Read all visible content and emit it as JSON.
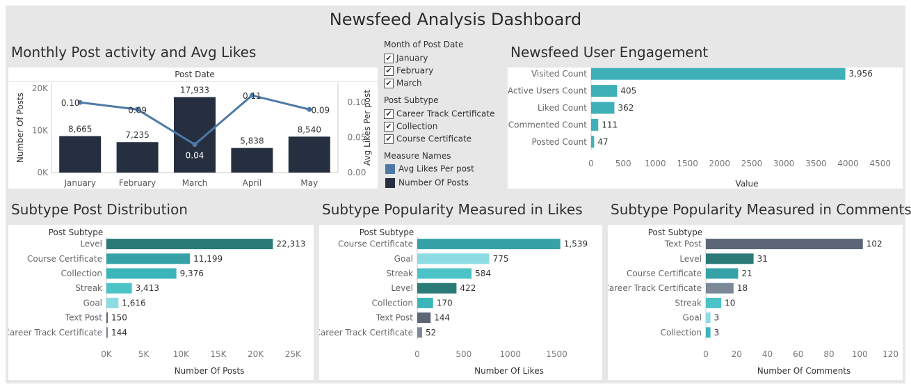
{
  "dashboard": {
    "title": "Newsfeed Analysis Dashboard",
    "monthly_title": "Monthly Post activity and Avg Likes",
    "engagement_title": "Newsfeed User Engagement",
    "subtype_dist_title": "Subtype Post Distribution",
    "likes_title": "Subtype Popularity Measured in Likes",
    "comments_title": "Subtype Popularity Measured in Comments"
  },
  "filters": {
    "month_title": "Month of Post Date",
    "months": [
      "January",
      "February",
      "March"
    ],
    "subtype_title": "Post Subtype",
    "subtypes": [
      "Career Track Certificate",
      "Collection",
      "Course Certificate"
    ],
    "check_glyph": "✔",
    "measure_title": "Measure Names",
    "measures": [
      {
        "label": "Avg Likes Per post",
        "color": "#4e79a7"
      },
      {
        "label": "Number Of Posts",
        "color": "#262f40"
      }
    ]
  },
  "chart_data": [
    {
      "id": "monthly",
      "type": "bar",
      "title": "Post Date",
      "categories": [
        "January",
        "February",
        "March",
        "April",
        "May"
      ],
      "series": [
        {
          "name": "Number Of Posts",
          "values": [
            8665,
            7235,
            17933,
            5838,
            8540
          ],
          "labels": [
            "8,665",
            "7,235",
            "17,933",
            "5,838",
            "8,540"
          ],
          "color": "#262f40"
        },
        {
          "name": "Avg Likes Per post",
          "type": "line",
          "values": [
            0.1,
            0.09,
            0.04,
            0.11,
            0.09
          ],
          "labels": [
            "0.10",
            "0.09",
            "0.04",
            "0.11",
            "0.09"
          ],
          "color": "#4e79a7"
        }
      ],
      "ylabel": "Number Of Posts",
      "y2label": "Avg Likes Per post",
      "ylim": [
        0,
        20000
      ],
      "yticks": [
        {
          "v": 0,
          "l": "0K"
        },
        {
          "v": 10000,
          "l": "10K"
        },
        {
          "v": 20000,
          "l": "20K"
        }
      ],
      "y2lim": [
        0,
        0.12
      ],
      "y2ticks": [
        {
          "v": 0,
          "l": "0.00"
        },
        {
          "v": 0.05,
          "l": "0.05"
        },
        {
          "v": 0.1,
          "l": "0.10"
        }
      ]
    },
    {
      "id": "engagement",
      "type": "bar",
      "orientation": "horizontal",
      "categories": [
        "Visited Count",
        "Active Users Count",
        "Liked Count",
        "Commented Count",
        "Posted Count"
      ],
      "values": [
        3956,
        405,
        362,
        111,
        47
      ],
      "labels": [
        "3,956",
        "405",
        "362",
        "111",
        "47"
      ],
      "color": "#40b0b8",
      "xlabel": "Value",
      "xlim": [
        0,
        4600
      ],
      "xticks": [
        {
          "v": 0,
          "l": "0"
        },
        {
          "v": 500,
          "l": "500"
        },
        {
          "v": 1000,
          "l": "1000"
        },
        {
          "v": 1500,
          "l": "1500"
        },
        {
          "v": 2000,
          "l": "2000"
        },
        {
          "v": 2500,
          "l": "2500"
        },
        {
          "v": 3000,
          "l": "3000"
        },
        {
          "v": 3500,
          "l": "3500"
        },
        {
          "v": 4000,
          "l": "4000"
        },
        {
          "v": 4500,
          "l": "4500"
        }
      ]
    },
    {
      "id": "subtype_dist",
      "type": "bar",
      "orientation": "horizontal",
      "header": "Post Subtype",
      "categories": [
        "Level",
        "Course Certificate",
        "Collection",
        "Streak",
        "Goal",
        "Text Post",
        "Career Track Certificate"
      ],
      "values": [
        22313,
        11199,
        9376,
        3413,
        1616,
        150,
        144
      ],
      "labels": [
        "22,313",
        "11,199",
        "9,376",
        "3,413",
        "1,616",
        "150",
        "144"
      ],
      "colors": [
        "#2a7a78",
        "#36a2a8",
        "#3ab5ba",
        "#4cc3c7",
        "#8ddbe3",
        "#5c6677",
        "#7c8898"
      ],
      "xlabel": "Number Of Posts",
      "xlim": [
        0,
        26000
      ],
      "xticks": [
        {
          "v": 0,
          "l": "0K"
        },
        {
          "v": 5000,
          "l": "5K"
        },
        {
          "v": 10000,
          "l": "10K"
        },
        {
          "v": 15000,
          "l": "15K"
        },
        {
          "v": 20000,
          "l": "20K"
        },
        {
          "v": 25000,
          "l": "25K"
        }
      ]
    },
    {
      "id": "likes",
      "type": "bar",
      "orientation": "horizontal",
      "header": "Post Subtype",
      "categories": [
        "Course Certificate",
        "Goal",
        "Streak",
        "Level",
        "Collection",
        "Text Post",
        "Career Track Certificate"
      ],
      "values": [
        1539,
        775,
        584,
        422,
        170,
        144,
        52
      ],
      "labels": [
        "1,539",
        "775",
        "584",
        "422",
        "170",
        "144",
        "52"
      ],
      "colors": [
        "#36a2a8",
        "#8ddbe3",
        "#4cc3c7",
        "#2a7a78",
        "#3ab5ba",
        "#5c6677",
        "#7c8898"
      ],
      "xlabel": "Number Of Likes",
      "xlim": [
        0,
        1780
      ],
      "xticks": [
        {
          "v": 0,
          "l": "0"
        },
        {
          "v": 500,
          "l": "500"
        },
        {
          "v": 1000,
          "l": "1000"
        },
        {
          "v": 1500,
          "l": "1500"
        }
      ]
    },
    {
      "id": "comments",
      "type": "bar",
      "orientation": "horizontal",
      "header": "Post Subtype",
      "categories": [
        "Text Post",
        "Level",
        "Course Certificate",
        "Career Track Certificate",
        "Streak",
        "Goal",
        "Collection"
      ],
      "values": [
        102,
        31,
        21,
        18,
        10,
        3,
        3
      ],
      "labels": [
        "102",
        "31",
        "21",
        "18",
        "10",
        "3",
        "3"
      ],
      "colors": [
        "#5c6677",
        "#2a7a78",
        "#36a2a8",
        "#7c8898",
        "#4cc3c7",
        "#8ddbe3",
        "#3ab5ba"
      ],
      "xlabel": "Number Of Comments",
      "xlim": [
        0,
        122
      ],
      "xticks": [
        {
          "v": 0,
          "l": "0"
        },
        {
          "v": 20,
          "l": "20"
        },
        {
          "v": 40,
          "l": "40"
        },
        {
          "v": 60,
          "l": "60"
        },
        {
          "v": 80,
          "l": "80"
        },
        {
          "v": 100,
          "l": "100"
        },
        {
          "v": 120,
          "l": "120"
        }
      ]
    }
  ]
}
